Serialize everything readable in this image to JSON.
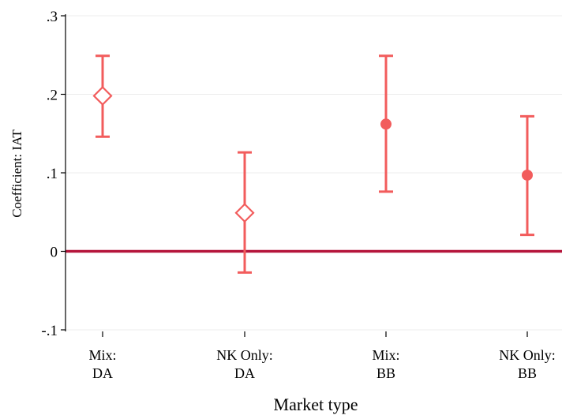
{
  "chart_data": {
    "type": "scatter",
    "subtype": "coefficient-plot-with-confidence-intervals",
    "xlabel": "Market type",
    "ylabel": "Coefficient: IAT",
    "ylim": [
      -0.1,
      0.3
    ],
    "yticks": [
      {
        "value": -0.1,
        "label": "-.1"
      },
      {
        "value": 0,
        "label": "0"
      },
      {
        "value": 0.1,
        "label": ".1"
      },
      {
        "value": 0.2,
        "label": ".2"
      },
      {
        "value": 0.3,
        "label": ".3"
      }
    ],
    "grid": true,
    "reference_line": {
      "y": 0,
      "color": "#b5153b"
    },
    "marker_color": "#f25c5c",
    "categories": [
      {
        "line1": "Mix:",
        "line2": "DA",
        "estimate": 0.198,
        "ci_low": 0.146,
        "ci_high": 0.249,
        "marker": "hollow-diamond"
      },
      {
        "line1": "NK Only:",
        "line2": "DA",
        "estimate": 0.049,
        "ci_low": -0.027,
        "ci_high": 0.126,
        "marker": "hollow-diamond"
      },
      {
        "line1": "Mix:",
        "line2": "BB",
        "estimate": 0.162,
        "ci_low": 0.076,
        "ci_high": 0.249,
        "marker": "filled-circle"
      },
      {
        "line1": "NK Only:",
        "line2": "BB",
        "estimate": 0.097,
        "ci_low": 0.021,
        "ci_high": 0.172,
        "marker": "filled-circle"
      }
    ]
  }
}
